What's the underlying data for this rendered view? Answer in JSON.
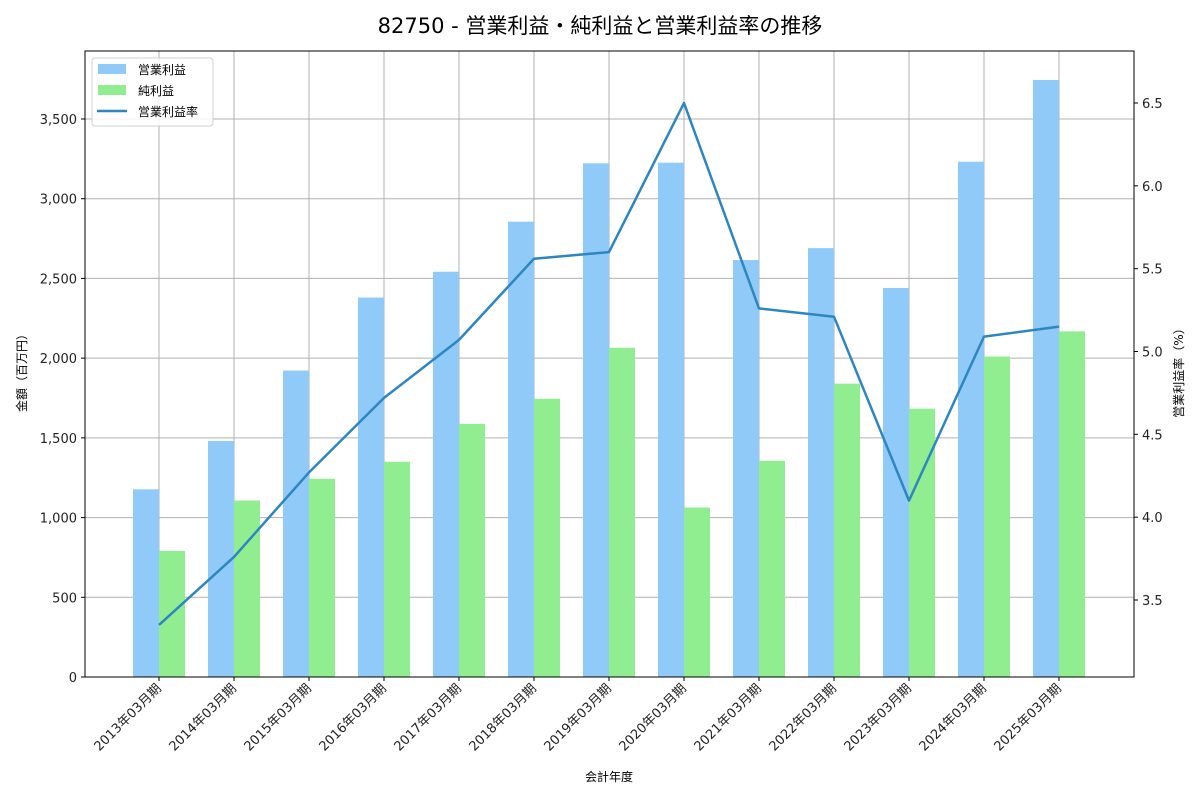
{
  "chart_data": {
    "type": "bar",
    "title": "82750 - 営業利益・純利益と営業利益率の推移",
    "xlabel": "会計年度",
    "ylabel": "金額（百万円）",
    "ylabel_right": "営業利益率（%）",
    "categories": [
      "2013年03月期",
      "2014年03月期",
      "2015年03月期",
      "2016年03月期",
      "2017年03月期",
      "2018年03月期",
      "2019年03月期",
      "2020年03月期",
      "2021年03月期",
      "2022年03月期",
      "2023年03月期",
      "2024年03月期",
      "2025年03月期"
    ],
    "series": [
      {
        "name": "営業利益",
        "type": "bar",
        "axis": "left",
        "color": "#90caf9",
        "values": [
          1177,
          1480,
          1922,
          2380,
          2542,
          2856,
          3222,
          3226,
          2615,
          2690,
          2440,
          3232,
          3745
        ]
      },
      {
        "name": "純利益",
        "type": "bar",
        "axis": "left",
        "color": "#90ee90",
        "values": [
          790,
          1107,
          1243,
          1350,
          1588,
          1745,
          2065,
          1063,
          1356,
          1840,
          1683,
          2010,
          2168
        ]
      },
      {
        "name": "営業利益率",
        "type": "line",
        "axis": "right",
        "color": "#2e86c1",
        "values": [
          3.35,
          3.76,
          4.27,
          4.72,
          5.07,
          5.56,
          5.6,
          6.5,
          5.26,
          5.21,
          4.1,
          5.09,
          5.15
        ]
      }
    ],
    "ylim": [
      0,
      3925
    ],
    "ylim_right": [
      3.05,
      6.8
    ],
    "yticks": [
      0,
      500,
      1000,
      1500,
      2000,
      2500,
      3000,
      3500
    ],
    "ytick_labels": [
      "0",
      "500",
      "1,000",
      "1,500",
      "2,000",
      "2,500",
      "3,000",
      "3,500"
    ],
    "yticks_right": [
      3.5,
      4.0,
      4.5,
      5.0,
      5.5,
      6.0,
      6.5
    ],
    "ytick_labels_right": [
      "3.5",
      "4.0",
      "4.5",
      "5.0",
      "5.5",
      "6.0",
      "6.5"
    ],
    "grid": true,
    "legend_position": "upper left"
  }
}
